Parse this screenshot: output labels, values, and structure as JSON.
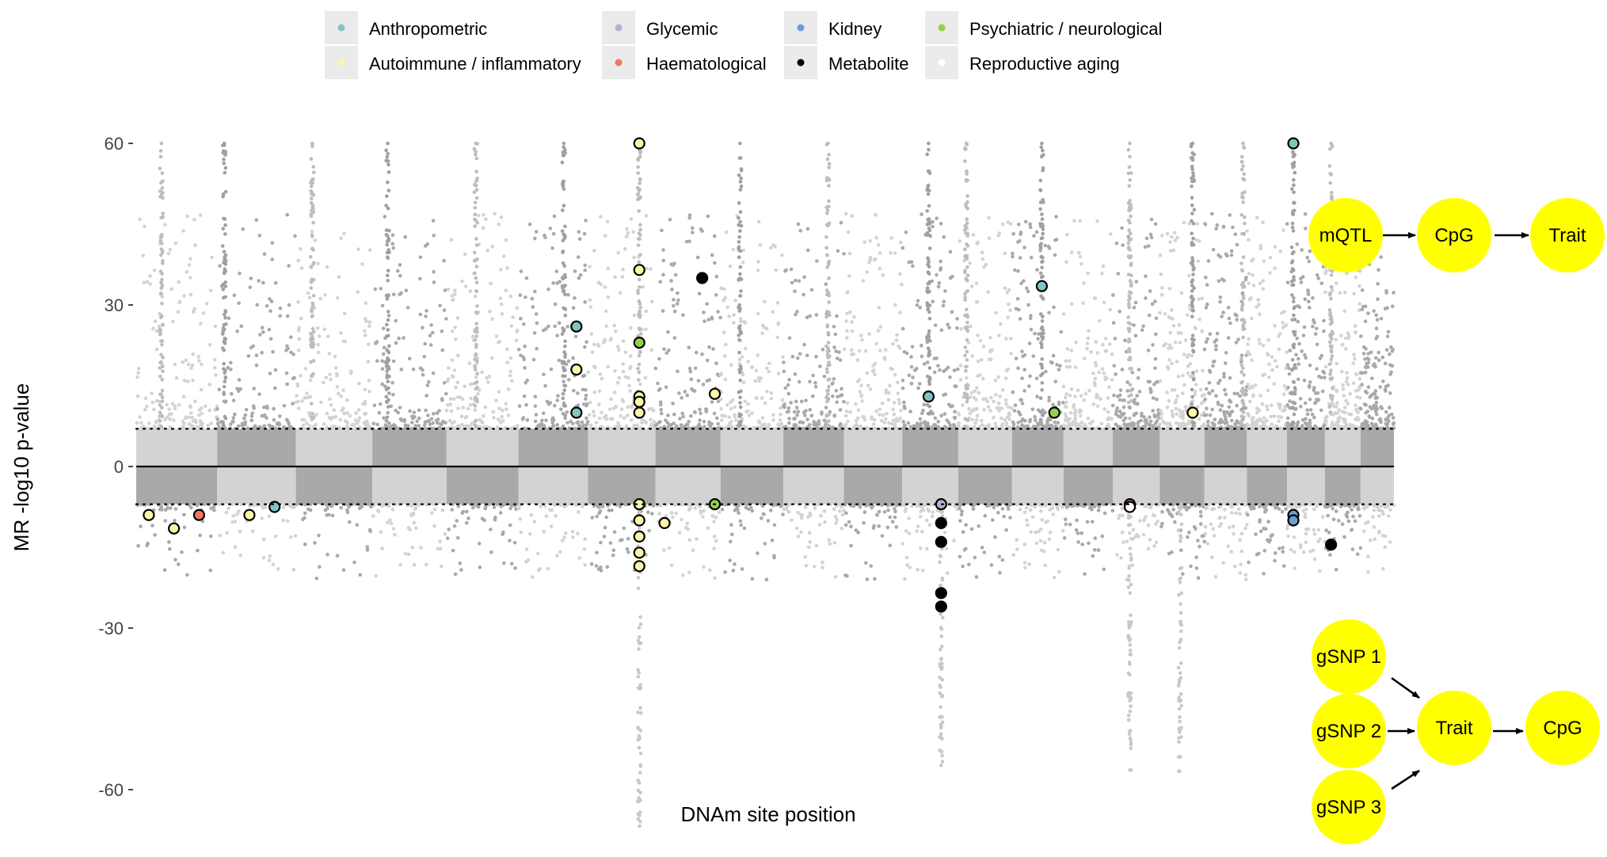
{
  "chart_data": {
    "type": "scatter",
    "subtype": "mirrored-manhattan",
    "xlabel": "DNAm site position",
    "ylabel": "MR -log10 p-value",
    "ylim": [
      -60,
      60
    ],
    "yticks": [
      -60,
      -30,
      0,
      30,
      60
    ],
    "significance_threshold": 7,
    "chromosome_bands": 22,
    "legend_position": "top",
    "legend": [
      {
        "label": "Anthropometric",
        "color": "#7fc6c0"
      },
      {
        "label": "Autoimmune / inflammatory",
        "color": "#fbf7a6"
      },
      {
        "label": "Glycemic",
        "color": "#b3b0d8"
      },
      {
        "label": "Haematological",
        "color": "#f47465"
      },
      {
        "label": "Kidney",
        "color": "#6c9ed1"
      },
      {
        "label": "Metabolite",
        "color": "#000000"
      },
      {
        "label": "Psychiatric / neurological",
        "color": "#92d050"
      },
      {
        "label": "Reproductive aging",
        "color": "#ffffff"
      }
    ],
    "highlighted_points": [
      {
        "x": 0.4,
        "y": 60,
        "category": "Autoimmune / inflammatory"
      },
      {
        "x": 0.4,
        "y": 36.5,
        "category": "Autoimmune / inflammatory"
      },
      {
        "x": 0.35,
        "y": 26,
        "category": "Anthropometric"
      },
      {
        "x": 0.4,
        "y": 23,
        "category": "Psychiatric / neurological"
      },
      {
        "x": 0.35,
        "y": 18,
        "category": "Autoimmune / inflammatory"
      },
      {
        "x": 0.4,
        "y": 13,
        "category": "Autoimmune / inflammatory"
      },
      {
        "x": 0.4,
        "y": 12,
        "category": "Autoimmune / inflammatory"
      },
      {
        "x": 0.35,
        "y": 10,
        "category": "Anthropometric"
      },
      {
        "x": 0.4,
        "y": 10,
        "category": "Autoimmune / inflammatory"
      },
      {
        "x": 0.45,
        "y": 35,
        "category": "Metabolite"
      },
      {
        "x": 0.46,
        "y": 13.5,
        "category": "Autoimmune / inflammatory"
      },
      {
        "x": 0.63,
        "y": 13,
        "category": "Anthropometric"
      },
      {
        "x": 0.72,
        "y": 33.5,
        "category": "Anthropometric"
      },
      {
        "x": 0.73,
        "y": 10,
        "category": "Psychiatric / neurological"
      },
      {
        "x": 0.84,
        "y": 10,
        "category": "Autoimmune / inflammatory"
      },
      {
        "x": 0.92,
        "y": 60,
        "category": "Anthropometric"
      },
      {
        "x": 0.01,
        "y": -9,
        "category": "Autoimmune / inflammatory"
      },
      {
        "x": 0.03,
        "y": -11.5,
        "category": "Autoimmune / inflammatory"
      },
      {
        "x": 0.05,
        "y": -9,
        "category": "Haematological"
      },
      {
        "x": 0.09,
        "y": -9,
        "category": "Autoimmune / inflammatory"
      },
      {
        "x": 0.11,
        "y": -7.5,
        "category": "Anthropometric"
      },
      {
        "x": 0.4,
        "y": -7,
        "category": "Autoimmune / inflammatory"
      },
      {
        "x": 0.4,
        "y": -10,
        "category": "Autoimmune / inflammatory"
      },
      {
        "x": 0.4,
        "y": -13,
        "category": "Autoimmune / inflammatory"
      },
      {
        "x": 0.4,
        "y": -16,
        "category": "Autoimmune / inflammatory"
      },
      {
        "x": 0.4,
        "y": -18.5,
        "category": "Autoimmune / inflammatory"
      },
      {
        "x": 0.42,
        "y": -10.5,
        "category": "Autoimmune / inflammatory"
      },
      {
        "x": 0.46,
        "y": -7,
        "category": "Psychiatric / neurological"
      },
      {
        "x": 0.64,
        "y": -7,
        "category": "Glycemic"
      },
      {
        "x": 0.64,
        "y": -10.5,
        "category": "Metabolite"
      },
      {
        "x": 0.64,
        "y": -14,
        "category": "Metabolite"
      },
      {
        "x": 0.64,
        "y": -23.5,
        "category": "Metabolite"
      },
      {
        "x": 0.64,
        "y": -26,
        "category": "Metabolite"
      },
      {
        "x": 0.79,
        "y": -7,
        "category": "Haematological"
      },
      {
        "x": 0.79,
        "y": -7.5,
        "category": "Reproductive aging"
      },
      {
        "x": 0.92,
        "y": -9,
        "category": "Kidney"
      },
      {
        "x": 0.92,
        "y": -10,
        "category": "Kidney"
      },
      {
        "x": 0.95,
        "y": -14.5,
        "category": "Metabolite"
      }
    ]
  },
  "diagrams": {
    "top": {
      "nodes": [
        "mQTL",
        "CpG",
        "Trait"
      ]
    },
    "bottom": {
      "inputs": [
        "gSNP 1",
        "gSNP 2",
        "gSNP 3"
      ],
      "middle": "Trait",
      "output": "CpG"
    }
  }
}
